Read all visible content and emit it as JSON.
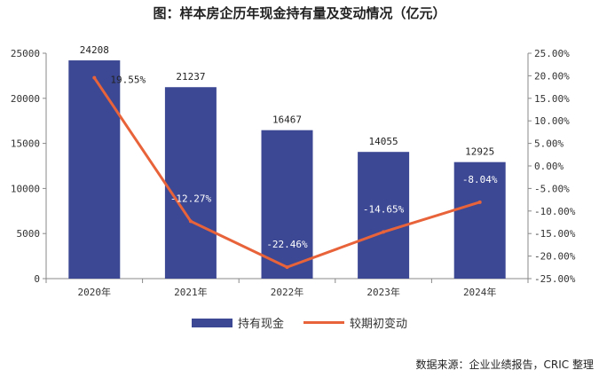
{
  "title": "图：样本房企历年现金持有量及变动情况（亿元）",
  "source": "数据来源：企业业绩报告，CRIC 整理",
  "colors": {
    "bar": "#3c4893",
    "line": "#e8633a",
    "axis": "#888888"
  },
  "chart_data": {
    "type": "bar",
    "title": "图：样本房企历年现金持有量及变动情况（亿元）",
    "categories": [
      "2020年",
      "2021年",
      "2022年",
      "2023年",
      "2024年"
    ],
    "series": [
      {
        "name": "持有现金",
        "type": "bar",
        "axis": "left",
        "values": [
          24208,
          21237,
          16467,
          14055,
          12925
        ]
      },
      {
        "name": "较期初变动",
        "type": "line",
        "axis": "right",
        "values": [
          19.55,
          -12.27,
          -22.46,
          -14.65,
          -8.04
        ]
      }
    ],
    "data_labels": {
      "bar": [
        "24208",
        "21237",
        "16467",
        "14055",
        "12925"
      ],
      "line": [
        "19.55%",
        "-12.27%",
        "-22.46%",
        "-14.65%",
        "-8.04%"
      ]
    },
    "left_axis": {
      "ylim": [
        0,
        25000
      ],
      "ticks": [
        "0",
        "5000",
        "10000",
        "15000",
        "20000",
        "25000"
      ]
    },
    "right_axis": {
      "ylim": [
        -25,
        25
      ],
      "ticks": [
        "-25.00%",
        "-20.00%",
        "-15.00%",
        "-10.00%",
        "-5.00%",
        "0.00%",
        "5.00%",
        "10.00%",
        "15.00%",
        "20.00%",
        "25.00%"
      ]
    },
    "legend_position": "bottom",
    "grid": false
  }
}
